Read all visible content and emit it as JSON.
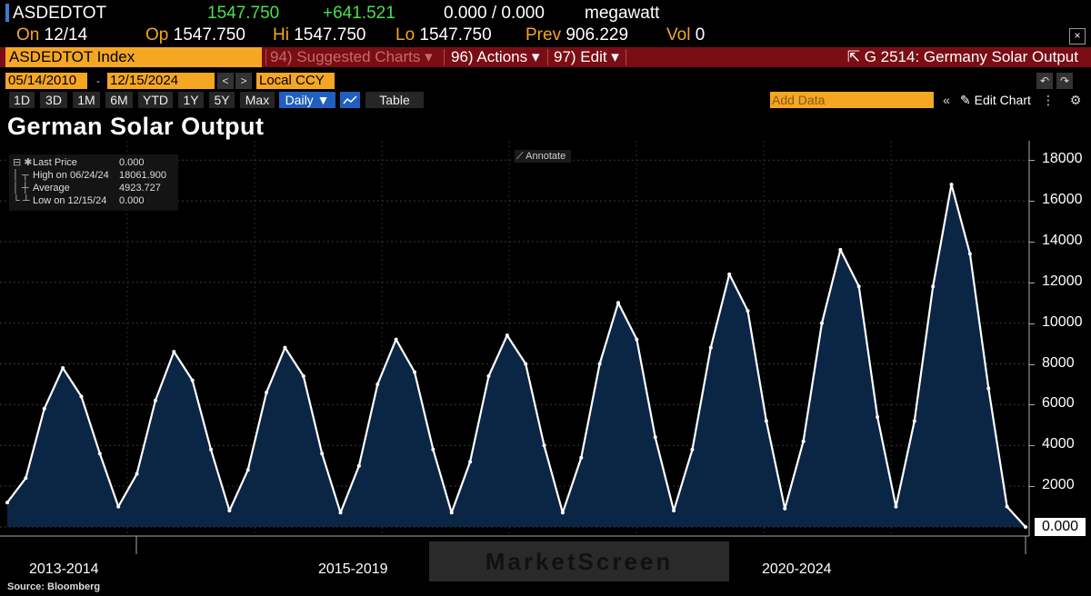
{
  "header": {
    "ticker": "ASDEDTOT",
    "last": "1547.750",
    "change": "+641.521",
    "bid_ask": "0.000 / 0.000",
    "unit": "megawatt",
    "on_label": "On",
    "on_value": "12/14",
    "op_label": "Op",
    "op_value": "1547.750",
    "hi_label": "Hi",
    "hi_value": "1547.750",
    "lo_label": "Lo",
    "lo_value": "1547.750",
    "prev_label": "Prev",
    "prev_value": "906.229",
    "vol_label": "Vol",
    "vol_value": "0"
  },
  "toolbar": {
    "index_field": "ASDEDTOT Index",
    "suggested": "94) Suggested Charts ▾",
    "actions": "96) Actions ▾",
    "edit": "97) Edit ▾",
    "graph_title": "G 2514: Germany Solar Output",
    "close": "×"
  },
  "dates": {
    "start": "05/14/2010",
    "end": "12/15/2024",
    "dash": "-",
    "currency": "Local CCY",
    "prev_btn": "<",
    "next_btn": ">",
    "undo": "↶",
    "redo": "↷"
  },
  "ranges": [
    "1D",
    "3D",
    "1M",
    "6M",
    "YTD",
    "1Y",
    "5Y",
    "Max"
  ],
  "range_controls": {
    "daily": "Daily ▼",
    "table": "Table",
    "add_data": "Add Data",
    "collapse": "«",
    "edit_chart": "✎ Edit Chart",
    "more": "⋮",
    "settings": "⚙"
  },
  "chart": {
    "title": "German Solar Output",
    "annotate": "⟋ Annotate",
    "last_value_box": "0.000",
    "source": "Source: Bloomberg",
    "watermark": "MarketScreen"
  },
  "legend": {
    "rows": [
      {
        "name": "Last Price",
        "value": "0.000"
      },
      {
        "name": "High on 06/24/24",
        "value": "18061.900"
      },
      {
        "name": "Average",
        "value": "4923.727"
      },
      {
        "name": "Low on 12/15/24",
        "value": "0.000"
      }
    ]
  },
  "colors": {
    "series_line": "#ffffff",
    "series_fill": "#0b2545",
    "accent_orange": "#f5a623",
    "bar_red": "#7a0e14",
    "price_green": "#4be04b"
  },
  "chart_data": {
    "type": "area",
    "title": "German Solar Output",
    "ylabel": "",
    "ylim": [
      0,
      18500
    ],
    "yticks": [
      0,
      2000,
      4000,
      6000,
      8000,
      10000,
      12000,
      14000,
      16000,
      18000
    ],
    "y_tick_labels": [
      "2000",
      "4000",
      "6000",
      "8000",
      "10000",
      "12000",
      "14000",
      "16000",
      "18000"
    ],
    "x_period_labels": [
      "2013-2014",
      "2015-2019",
      "2020-2024"
    ],
    "grid": true,
    "series": [
      {
        "values": [
          1200,
          2400,
          5800,
          7800,
          6400,
          3600,
          1000,
          2600,
          6200,
          8600,
          7200,
          3800,
          800,
          2800,
          6600,
          8800,
          7400,
          3600,
          700,
          3000,
          7000,
          9200,
          7600,
          3800,
          700,
          3200,
          7400,
          9400,
          8000,
          4000,
          700,
          3400,
          8000,
          11000,
          9200,
          4400,
          800,
          3800,
          8800,
          12400,
          10600,
          5200,
          900,
          4200,
          10000,
          13600,
          11800,
          5400,
          1000,
          5200,
          11800,
          16800,
          13400,
          6800,
          1000,
          0
        ]
      }
    ],
    "summary": {
      "last": 0.0,
      "high": 18061.9,
      "high_date": "06/24/24",
      "average": 4923.727,
      "low": 0.0,
      "low_date": "12/15/24"
    }
  }
}
